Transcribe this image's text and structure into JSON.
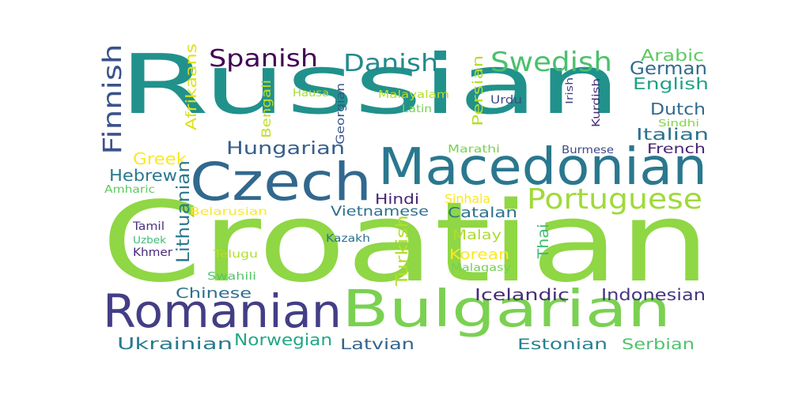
{
  "words": [
    {
      "text": "Russian",
      "color": "#21918c"
    },
    {
      "text": "Croatian",
      "color": "#8fd744"
    },
    {
      "text": "Macedonian",
      "color": "#2a788e"
    },
    {
      "text": "Czech",
      "color": "#31688e"
    },
    {
      "text": "Bulgarian",
      "color": "#7ad151"
    },
    {
      "text": "Romanian",
      "color": "#433e85"
    },
    {
      "text": "Portuguese",
      "color": "#a0da39"
    },
    {
      "text": "Spanish",
      "color": "#440154"
    },
    {
      "text": "Danish",
      "color": "#238a8d"
    },
    {
      "text": "Swedish",
      "color": "#4ac16d"
    },
    {
      "text": "Finnish",
      "color": "#3b528b"
    },
    {
      "text": "Hungarian",
      "color": "#355f8d"
    },
    {
      "text": "Arabic",
      "color": "#5ec962"
    },
    {
      "text": "German",
      "color": "#306a8e"
    },
    {
      "text": "English",
      "color": "#1fa187"
    },
    {
      "text": "Dutch",
      "color": "#31688e"
    },
    {
      "text": "Italian",
      "color": "#2c728e"
    },
    {
      "text": "French",
      "color": "#482173"
    },
    {
      "text": "Greek",
      "color": "#fde725"
    },
    {
      "text": "Hebrew",
      "color": "#2a788e"
    },
    {
      "text": "Amharic",
      "color": "#5ec962"
    },
    {
      "text": "Afrikaans",
      "color": "#dde318"
    },
    {
      "text": "Bengali",
      "color": "#bddf26"
    },
    {
      "text": "Lithuanian",
      "color": "#2a788e"
    },
    {
      "text": "Hindi",
      "color": "#482475"
    },
    {
      "text": "Sinhala",
      "color": "#fde725"
    },
    {
      "text": "Vietnamese",
      "color": "#2d708e"
    },
    {
      "text": "Catalan",
      "color": "#2c728e"
    },
    {
      "text": "Turkish",
      "color": "#b5de2b"
    },
    {
      "text": "Malay",
      "color": "#addc30"
    },
    {
      "text": "Korean",
      "color": "#fde725"
    },
    {
      "text": "Malagasy",
      "color": "#75d054"
    },
    {
      "text": "Thai",
      "color": "#3fbc73"
    },
    {
      "text": "Persian",
      "color": "#b5de2b"
    },
    {
      "text": "Urdu",
      "color": "#3e4a89"
    },
    {
      "text": "Irish",
      "color": "#424086"
    },
    {
      "text": "Kurdish",
      "color": "#472d7b"
    },
    {
      "text": "Sindhi",
      "color": "#84d44b"
    },
    {
      "text": "Burmese",
      "color": "#3e4989"
    },
    {
      "text": "Marathi",
      "color": "#7ad151"
    },
    {
      "text": "Hausa",
      "color": "#a5db36"
    },
    {
      "text": "Malayalam",
      "color": "#b8de29"
    },
    {
      "text": "Latin",
      "color": "#74d055"
    },
    {
      "text": "Georgian",
      "color": "#3a538b"
    },
    {
      "text": "Kazakh",
      "color": "#2c718e"
    },
    {
      "text": "Belarusian",
      "color": "#fde725"
    },
    {
      "text": "Tamil",
      "color": "#46307e"
    },
    {
      "text": "Uzbek",
      "color": "#3dbc74"
    },
    {
      "text": "Khmer",
      "color": "#482979"
    },
    {
      "text": "Telugu",
      "color": "#b5de2b"
    },
    {
      "text": "Swahili",
      "color": "#54c568"
    },
    {
      "text": "Chinese",
      "color": "#2e6e8e"
    },
    {
      "text": "Icelandic",
      "color": "#472c7a"
    },
    {
      "text": "Indonesian",
      "color": "#453581"
    },
    {
      "text": "Ukrainian",
      "color": "#297b8e"
    },
    {
      "text": "Norwegian",
      "color": "#22a785"
    },
    {
      "text": "Latvian",
      "color": "#33638d"
    },
    {
      "text": "Estonian",
      "color": "#26818e"
    },
    {
      "text": "Serbian",
      "color": "#4ec36b"
    }
  ]
}
